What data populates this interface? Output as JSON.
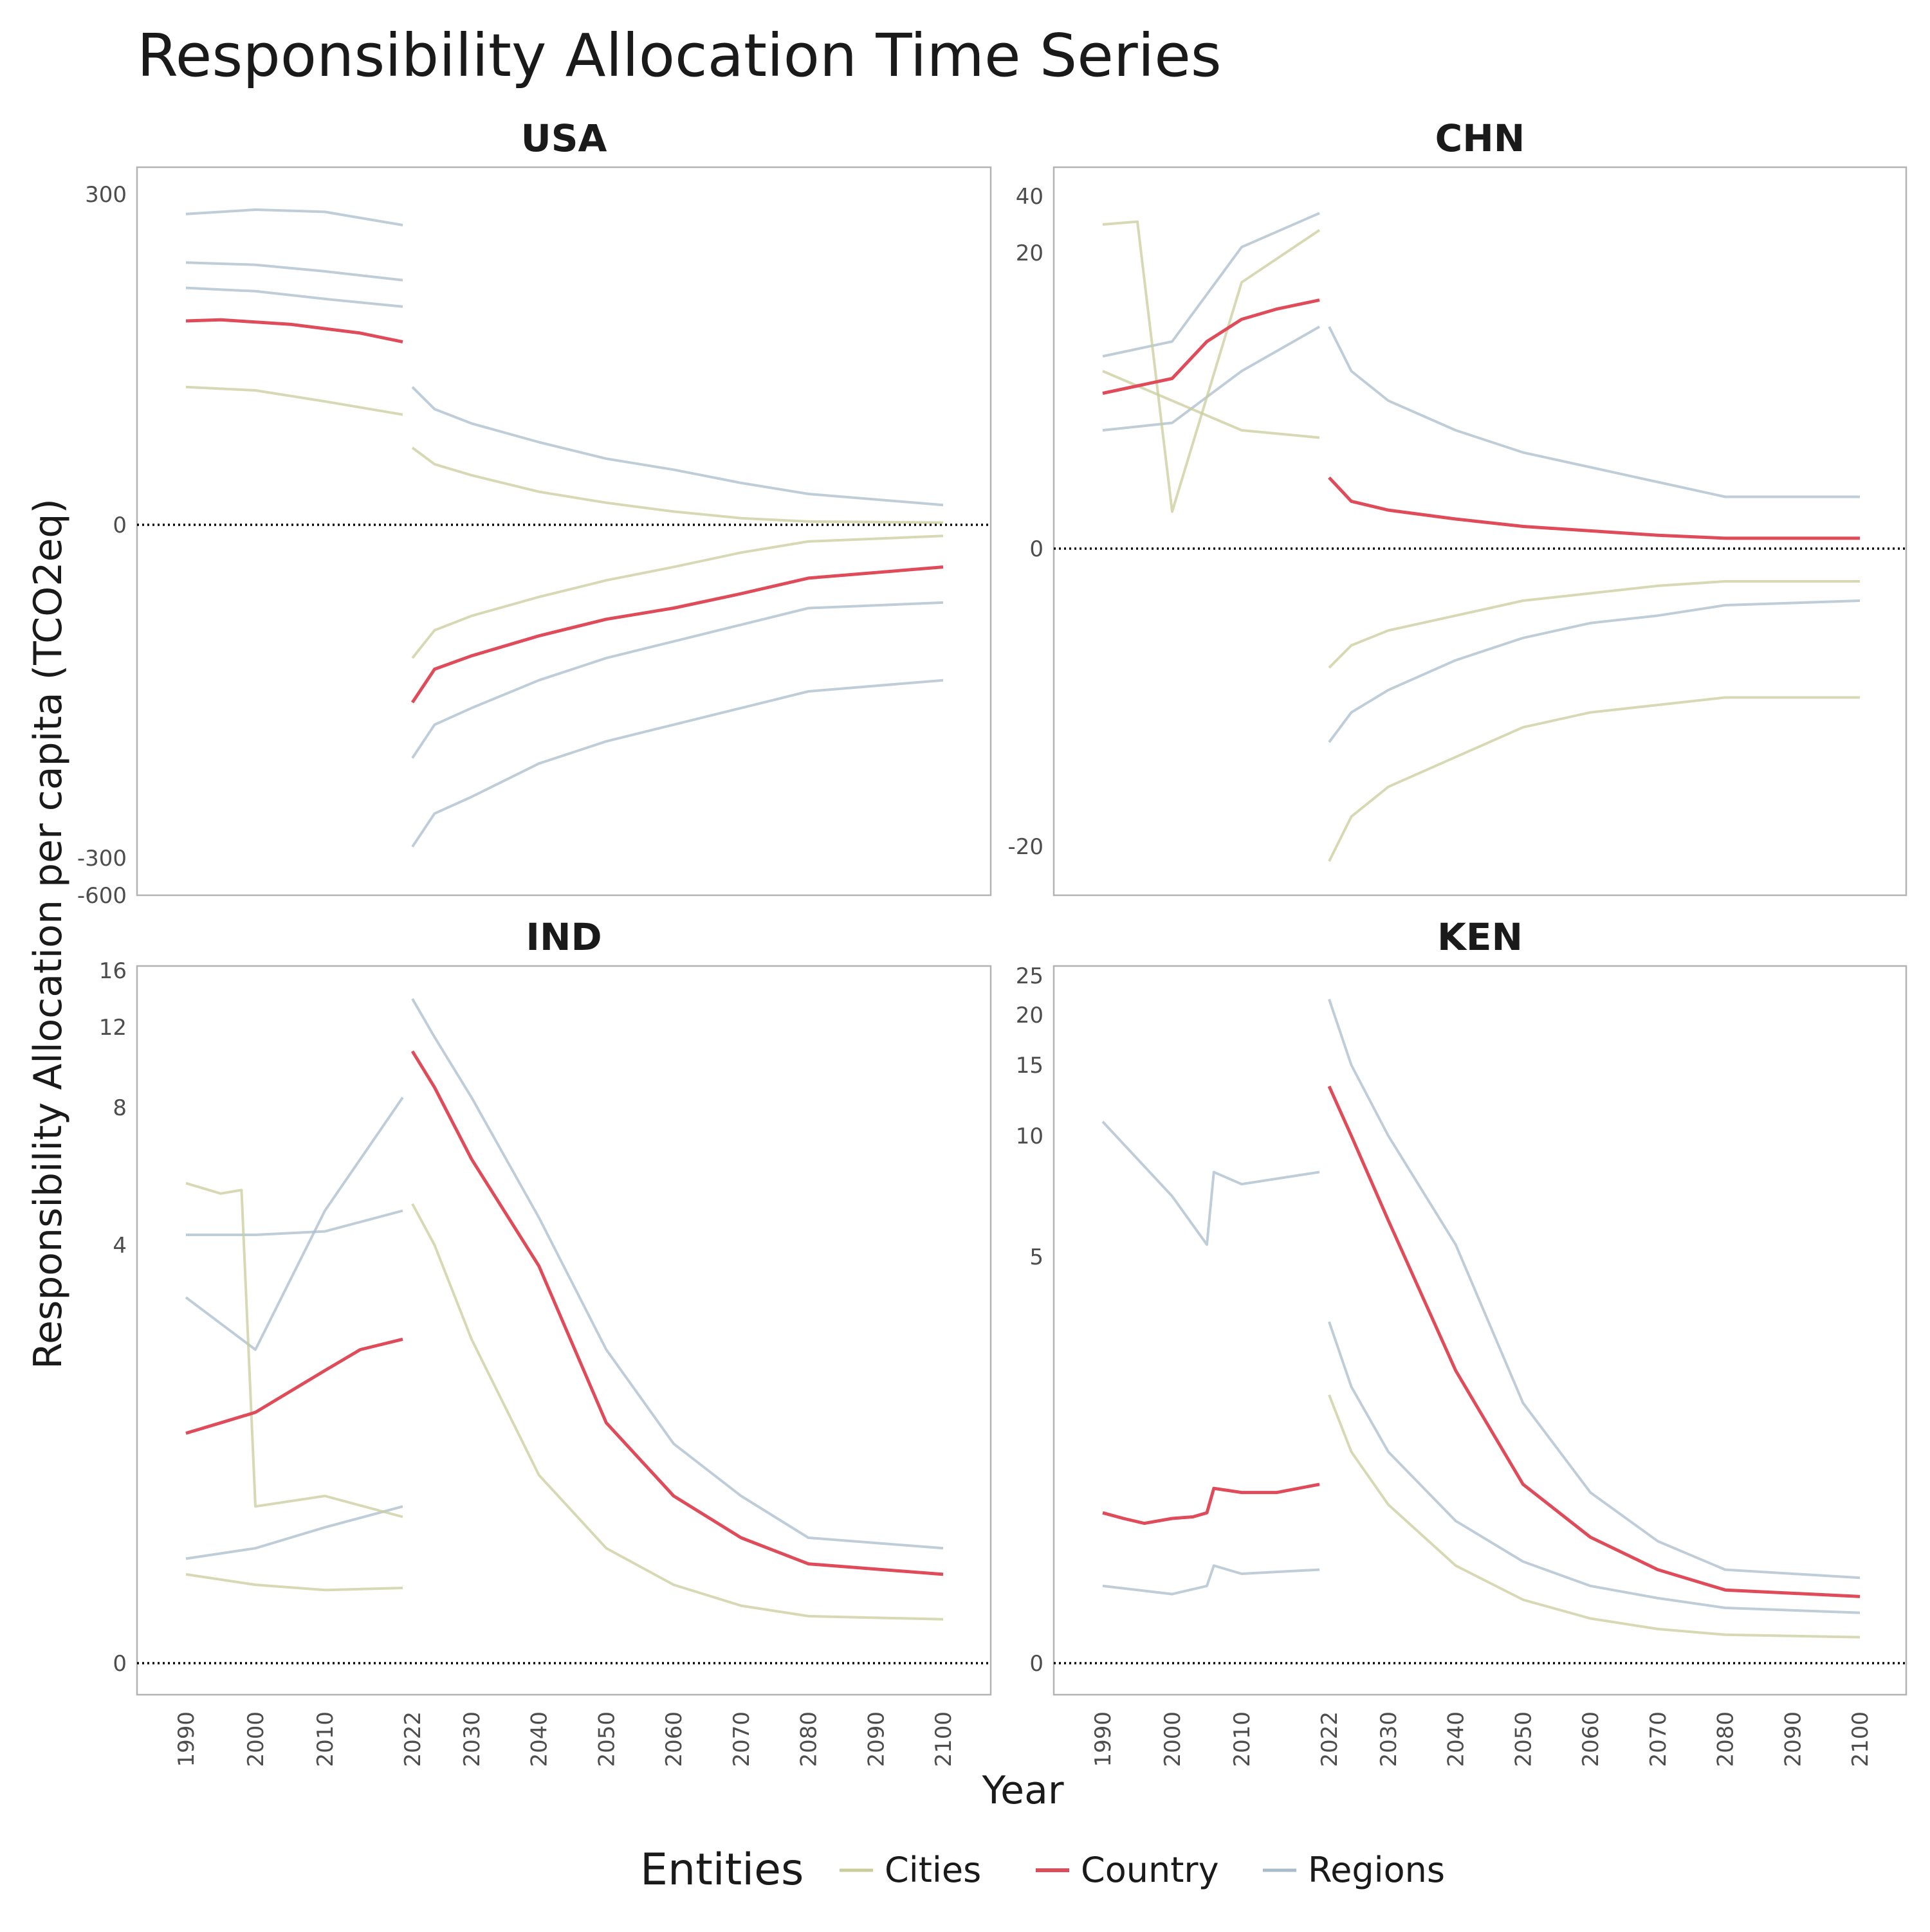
{
  "chart_data": {
    "type": "line",
    "title": "Responsibility Allocation Time Series",
    "xlabel": "Year",
    "ylabel": "Responsibility Allocation per capita (TCO2eq)",
    "colors": {
      "Cities": "#c9cc9b",
      "Country": "#e04b5a",
      "Regions": "#a9bccb"
    },
    "legend": {
      "title": "Entities",
      "position": "bottom",
      "entries": [
        "Cities",
        "Country",
        "Regions"
      ]
    },
    "x_ticks": [
      "1990",
      "2000",
      "2010",
      "2022",
      "2030",
      "2040",
      "2050",
      "2060",
      "2070",
      "2080",
      "2090",
      "2100"
    ],
    "grid": false,
    "panels": [
      {
        "name": "USA",
        "y_ticks": [
          "300",
          "0",
          "-300",
          "-600"
        ],
        "series": [
          {
            "name": "Country",
            "x": [
              1990,
              1995,
              2000,
              2005,
              2010,
              2015,
              2021,
              2022,
              2025,
              2030,
              2040,
              2050,
              2060,
              2070,
              2080,
              2100
            ],
            "y": [
              185,
              186,
              184,
              182,
              178,
              174,
              166,
              -160,
              -130,
              -118,
              -100,
              -85,
              -75,
              -62,
              -48,
              -38
            ]
          },
          {
            "name": "Regions",
            "x": [
              1990,
              2000,
              2010,
              2021
            ],
            "y": [
              282,
              286,
              284,
              272
            ]
          },
          {
            "name": "Regions",
            "x": [
              1990,
              2000,
              2010,
              2021
            ],
            "y": [
              238,
              236,
              230,
              222
            ]
          },
          {
            "name": "Regions",
            "x": [
              1990,
              2000,
              2010,
              2021
            ],
            "y": [
              215,
              212,
              205,
              198
            ]
          },
          {
            "name": "Regions",
            "x": [
              2022,
              2025,
              2030,
              2040,
              2050,
              2060,
              2070,
              2080,
              2100
            ],
            "y": [
              125,
              105,
              92,
              75,
              60,
              50,
              38,
              28,
              18
            ]
          },
          {
            "name": "Regions",
            "x": [
              2022,
              2025,
              2030,
              2040,
              2050,
              2060,
              2070,
              2080,
              2100
            ],
            "y": [
              -210,
              -180,
              -165,
              -140,
              -120,
              -105,
              -90,
              -75,
              -70
            ]
          },
          {
            "name": "Regions",
            "x": [
              2022,
              2025,
              2030,
              2040,
              2050,
              2060,
              2070,
              2080,
              2100
            ],
            "y": [
              -290,
              -260,
              -245,
              -215,
              -195,
              -180,
              -165,
              -150,
              -140
            ]
          },
          {
            "name": "Cities",
            "x": [
              1990,
              2000,
              2010,
              2021
            ],
            "y": [
              125,
              122,
              112,
              100
            ]
          },
          {
            "name": "Cities",
            "x": [
              2022,
              2025,
              2030,
              2040,
              2050,
              2060,
              2070,
              2080,
              2100
            ],
            "y": [
              70,
              55,
              45,
              30,
              20,
              12,
              6,
              3,
              2
            ]
          },
          {
            "name": "Cities",
            "x": [
              2022,
              2025,
              2030,
              2040,
              2050,
              2060,
              2070,
              2080,
              2100
            ],
            "y": [
              -120,
              -95,
              -82,
              -65,
              -50,
              -38,
              -25,
              -15,
              -10
            ]
          }
        ]
      },
      {
        "name": "CHN",
        "y_ticks": [
          "40",
          "20",
          "0",
          "-20"
        ],
        "series": [
          {
            "name": "Country",
            "x": [
              1990,
              1995,
              2000,
              2005,
              2010,
              2015,
              2021,
              2022,
              2025,
              2030,
              2040,
              2050,
              2060,
              2070,
              2080,
              2100
            ],
            "y": [
              10.5,
              11,
              11.5,
              14,
              15.5,
              16.2,
              16.8,
              4.8,
              3.2,
              2.6,
              2.0,
              1.5,
              1.2,
              0.9,
              0.7,
              0.7
            ]
          },
          {
            "name": "Regions",
            "x": [
              1990,
              2000,
              2010,
              2021
            ],
            "y": [
              13,
              14,
              22,
              34
            ]
          },
          {
            "name": "Regions",
            "x": [
              1990,
              2000,
              2010,
              2021
            ],
            "y": [
              8,
              8.5,
              12,
              15
            ]
          },
          {
            "name": "Regions",
            "x": [
              2022,
              2025,
              2030,
              2040,
              2050,
              2060,
              2070,
              2080,
              2100
            ],
            "y": [
              15,
              12,
              10,
              8,
              6.5,
              5.5,
              4.5,
              3.5,
              3.5
            ]
          },
          {
            "name": "Regions",
            "x": [
              2022,
              2025,
              2030,
              2040,
              2050,
              2060,
              2070,
              2080,
              2100
            ],
            "y": [
              -13,
              -11,
              -9.5,
              -7.5,
              -6,
              -5,
              -4.5,
              -3.8,
              -3.5
            ]
          },
          {
            "name": "Cities",
            "x": [
              1990,
              1995,
              2000,
              2010,
              2021
            ],
            "y": [
              30,
              31,
              2.5,
              18,
              28
            ]
          },
          {
            "name": "Cities",
            "x": [
              1990,
              2000,
              2010,
              2021
            ],
            "y": [
              12,
              10,
              8,
              7.5
            ]
          },
          {
            "name": "Cities",
            "x": [
              2022,
              2025,
              2030,
              2040,
              2050,
              2060,
              2070,
              2080,
              2100
            ],
            "y": [
              -21,
              -18,
              -16,
              -14,
              -12,
              -11,
              -10.5,
              -10,
              -10
            ]
          },
          {
            "name": "Cities",
            "x": [
              2022,
              2025,
              2030,
              2040,
              2050,
              2060,
              2070,
              2080,
              2100
            ],
            "y": [
              -8,
              -6.5,
              -5.5,
              -4.5,
              -3.5,
              -3,
              -2.5,
              -2.2,
              -2.2
            ]
          }
        ]
      },
      {
        "name": "IND",
        "y_ticks": [
          "16",
          "12",
          "8",
          "4",
          "0"
        ],
        "series": [
          {
            "name": "Country",
            "x": [
              1990,
              1995,
              2000,
              2005,
              2010,
              2015,
              2021,
              2022,
              2025,
              2030,
              2040,
              2050,
              2060,
              2070,
              2080,
              2100
            ],
            "y": [
              2.2,
              2.3,
              2.4,
              2.6,
              2.8,
              3.0,
              3.1,
              10.8,
              9.0,
              6.5,
              3.8,
              2.3,
              1.6,
              1.2,
              0.95,
              0.85
            ]
          },
          {
            "name": "Regions",
            "x": [
              1990,
              2000,
              2010,
              2021
            ],
            "y": [
              4.3,
              4.3,
              4.4,
              5.0
            ]
          },
          {
            "name": "Regions",
            "x": [
              1990,
              2000,
              2010,
              2021
            ],
            "y": [
              3.5,
              3.0,
              5.0,
              8.5
            ]
          },
          {
            "name": "Regions",
            "x": [
              1990,
              2000,
              2010,
              2021
            ],
            "y": [
              1.0,
              1.1,
              1.3,
              1.5
            ]
          },
          {
            "name": "Regions",
            "x": [
              2022,
              2025,
              2030,
              2040,
              2050,
              2060,
              2070,
              2080,
              2100
            ],
            "y": [
              14.0,
              11.5,
              8.5,
              4.8,
              3.0,
              2.1,
              1.6,
              1.2,
              1.1
            ]
          },
          {
            "name": "Cities",
            "x": [
              1990,
              1995,
              1998,
              2000,
              2010,
              2021
            ],
            "y": [
              5.8,
              5.5,
              5.6,
              1.5,
              1.6,
              1.4
            ]
          },
          {
            "name": "Cities",
            "x": [
              1990,
              2000,
              2010,
              2021
            ],
            "y": [
              0.85,
              0.75,
              0.7,
              0.72
            ]
          },
          {
            "name": "Cities",
            "x": [
              2022,
              2025,
              2030,
              2040,
              2050,
              2060,
              2070,
              2080,
              2100
            ],
            "y": [
              5.2,
              4.0,
              3.1,
              1.8,
              1.1,
              0.75,
              0.55,
              0.45,
              0.42
            ]
          }
        ]
      },
      {
        "name": "KEN",
        "y_ticks": [
          "25",
          "20",
          "15",
          "10",
          "5",
          "0"
        ],
        "series": [
          {
            "name": "Country",
            "x": [
              1990,
              1993,
              1996,
              2000,
              2003,
              2005,
              2006,
              2010,
              2015,
              2021,
              2022,
              2025,
              2030,
              2040,
              2050,
              2060,
              2070,
              2080,
              2100
            ],
            "y": [
              1.85,
              1.78,
              1.72,
              1.78,
              1.8,
              1.85,
              2.15,
              2.1,
              2.1,
              2.2,
              13.5,
              10.0,
              6.5,
              3.6,
              2.2,
              1.55,
              1.15,
              0.9,
              0.82
            ]
          },
          {
            "name": "Regions",
            "x": [
              1990,
              2000,
              2005,
              2006,
              2010,
              2021
            ],
            "y": [
              11.0,
              7.5,
              5.5,
              8.5,
              8.0,
              8.5
            ]
          },
          {
            "name": "Regions",
            "x": [
              1990,
              2000,
              2005,
              2006,
              2010,
              2021
            ],
            "y": [
              0.95,
              0.85,
              0.95,
              1.2,
              1.1,
              1.15
            ]
          },
          {
            "name": "Regions",
            "x": [
              2022,
              2025,
              2030,
              2040,
              2050,
              2060,
              2070,
              2080,
              2100
            ],
            "y": [
              22.0,
              15.0,
              10.0,
              5.5,
              3.2,
              2.1,
              1.5,
              1.15,
              1.05
            ]
          },
          {
            "name": "Regions",
            "x": [
              2022,
              2025,
              2030,
              2040,
              2050,
              2060,
              2070,
              2080,
              2100
            ],
            "y": [
              4.2,
              3.4,
              2.6,
              1.75,
              1.25,
              0.95,
              0.8,
              0.68,
              0.62
            ]
          },
          {
            "name": "Cities",
            "x": [
              2022,
              2025,
              2030,
              2040,
              2050,
              2060,
              2070,
              2080,
              2100
            ],
            "y": [
              3.3,
              2.6,
              1.95,
              1.2,
              0.78,
              0.55,
              0.42,
              0.35,
              0.32
            ]
          }
        ]
      }
    ]
  }
}
